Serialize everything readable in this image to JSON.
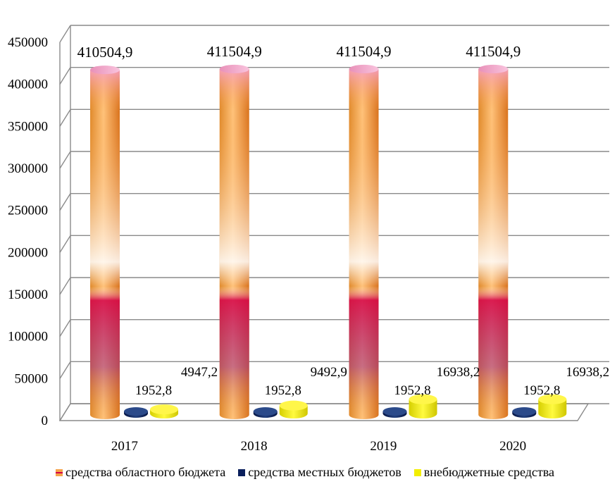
{
  "chart_data": {
    "type": "bar",
    "title": "",
    "xlabel": "",
    "ylabel": "",
    "ylim": [
      0,
      450000
    ],
    "yticks": [
      0,
      50000,
      100000,
      150000,
      200000,
      250000,
      300000,
      350000,
      400000,
      450000
    ],
    "ytick_labels": [
      "0",
      "50000",
      "100000",
      "150000",
      "200000",
      "250000",
      "300000",
      "350000",
      "400000",
      "450000"
    ],
    "categories": [
      "2017",
      "2018",
      "2019",
      "2020"
    ],
    "series": [
      {
        "name": "средства областного бюджета",
        "values": [
          410504.9,
          411504.9,
          411504.9,
          411504.9
        ],
        "labels": [
          "410504,9",
          "411504,9",
          "411504,9",
          "411504,9"
        ],
        "color": "#F5A34A"
      },
      {
        "name": "средства местных бюджетов",
        "values": [
          1952.8,
          1952.8,
          1952.8,
          1952.8
        ],
        "labels": [
          "1952,8",
          "1952,8",
          "1952,8",
          "1952,8"
        ],
        "color": "#0A1F5C"
      },
      {
        "name": "внебюджетные средства",
        "values": [
          4947.2,
          9492.9,
          16938.2,
          16938.2
        ],
        "labels": [
          "4947,2",
          "9492,9",
          "16938,2",
          "16938,2"
        ],
        "color": "#F2EE00"
      }
    ],
    "grid": true,
    "legend_position": "bottom"
  }
}
